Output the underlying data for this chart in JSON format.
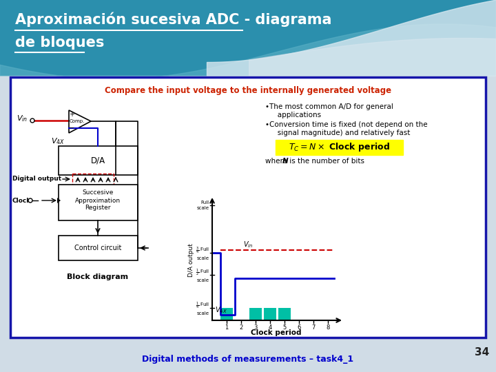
{
  "title_line1": "Aproximación sucesiva ADC - diagrama",
  "title_line2": "de bloques",
  "footer_text": "Digital methods of measurements – task4_1",
  "page_number": "34",
  "bg_top_color": "#2E8BA5",
  "content_bg": "#FFFFFF",
  "border_color": "#1E1EAA",
  "title_color": "#FFFFFF",
  "footer_color": "#0000CC",
  "slide_bg": "#D0DCE6"
}
